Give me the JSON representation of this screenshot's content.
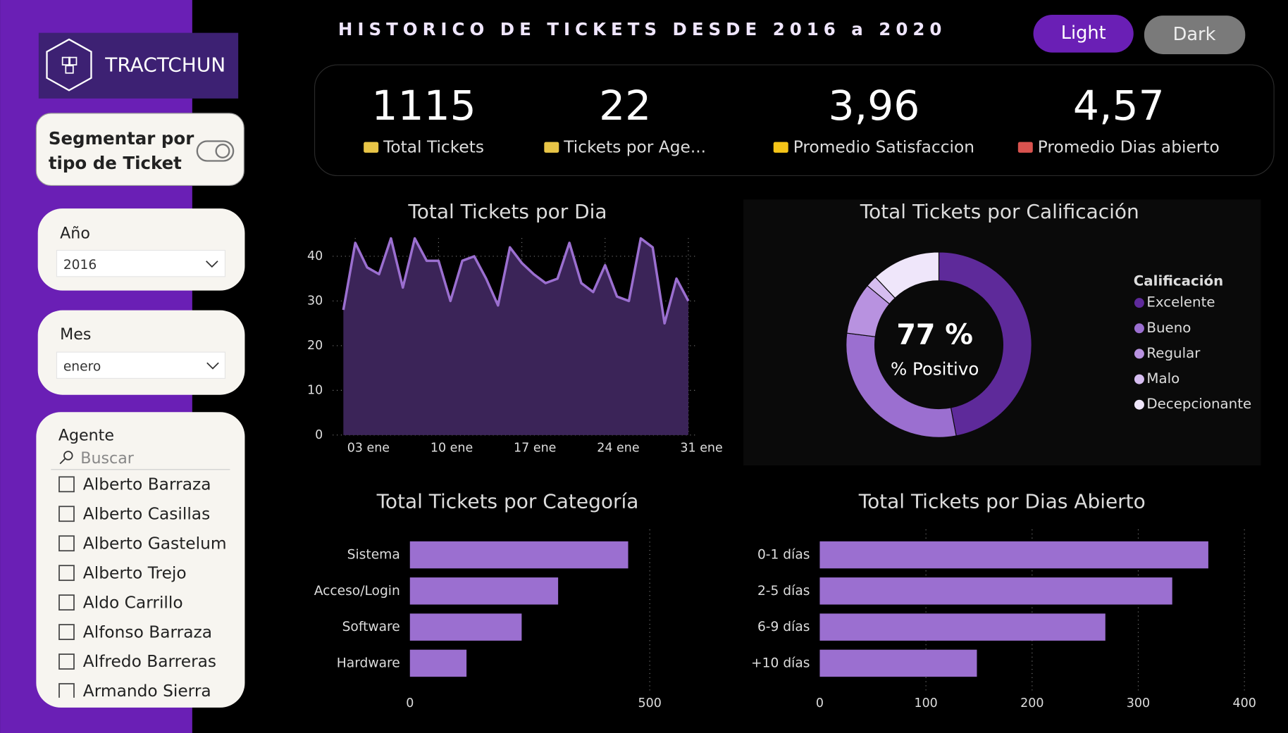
{
  "header": {
    "title": "HISTORICO DE TICKETS DESDE 2016 a 2020",
    "buttons": [
      "Light",
      "Dark"
    ]
  },
  "logo": "TRACTCHUN",
  "toggle": {
    "label_lines": [
      "Segmentar por",
      "tipo de Ticket"
    ]
  },
  "slicers": {
    "year": {
      "label": "Año",
      "value": "2016"
    },
    "month": {
      "label": "Mes",
      "value": "enero"
    },
    "agent": {
      "label": "Agente",
      "search": "Buscar",
      "items": [
        "Alberto Barraza",
        "Alberto Casillas",
        "Alberto Gastelum",
        "Alberto Trejo",
        "Aldo Carrillo",
        "Alfonso Barraza",
        "Alfredo Barreras",
        "Armando Sierra"
      ]
    }
  },
  "kpis": [
    {
      "value": "1115",
      "label": "Total Tickets"
    },
    {
      "value": "22",
      "label": "Tickets por Age..."
    },
    {
      "value": "3,96",
      "label": "Promedio Satisfaccion"
    },
    {
      "value": "4,57",
      "label": "Promedio Dias abierto"
    }
  ],
  "chart_data": [
    {
      "type": "area",
      "title": "Total Tickets por Dia",
      "x": [
        2,
        3,
        4,
        5,
        6,
        7,
        8,
        9,
        10,
        11,
        12,
        13,
        14,
        15,
        16,
        17,
        18,
        19,
        20,
        21,
        22,
        23,
        24,
        25,
        26,
        27,
        28,
        29,
        30,
        31
      ],
      "values": [
        28,
        43,
        37.5,
        36,
        44,
        33,
        44,
        39,
        39,
        30,
        39,
        40,
        35,
        29,
        42,
        38.5,
        36,
        34,
        35,
        43,
        34,
        32,
        38,
        31,
        30,
        44,
        42,
        25,
        35,
        30
      ],
      "color": "#9b6fd0",
      "xlim": [
        2,
        31
      ],
      "xticks": [
        {
          "value": 3,
          "label": "03 ene"
        },
        {
          "value": 10,
          "label": "10 ene"
        },
        {
          "value": 17,
          "label": "17 ene"
        },
        {
          "value": 24,
          "label": "24 ene"
        },
        {
          "value": 31,
          "label": "31 ene"
        }
      ],
      "ylim": [
        0,
        45
      ],
      "yticks": [
        0,
        10,
        20,
        30,
        40
      ],
      "grid": true
    },
    {
      "type": "donut",
      "title": "Total Tickets por Calificación",
      "legend_title": "Calificación",
      "categories": [
        "Excelente",
        "Bueno",
        "Regular",
        "Malo",
        "Decepcionante"
      ],
      "values": [
        47,
        30,
        9,
        2,
        12
      ],
      "colors": [
        "#5e2a9a",
        "#9b6fd0",
        "#b892e0",
        "#d6bdf0",
        "#efe6fa"
      ],
      "center_value": "77 %",
      "center_label": "% Positivo",
      "legend": "right"
    },
    {
      "type": "hbar",
      "title": "Total Tickets por Categoría",
      "categories": [
        "Sistema",
        "Acceso/Login",
        "Software",
        "Hardware"
      ],
      "values": [
        455,
        309,
        233,
        118
      ],
      "color": "#9b6fd0",
      "xlim": [
        0,
        500
      ],
      "xticks": [
        0,
        500
      ],
      "grid": true
    },
    {
      "type": "hbar",
      "title": "Total Tickets por Dias Abierto",
      "categories": [
        "0-1 días",
        "2-5 días",
        "6-9 días",
        "+10 días"
      ],
      "values": [
        366,
        332,
        269,
        148
      ],
      "color": "#9b6fd0",
      "xlim": [
        0,
        400
      ],
      "xticks": [
        0,
        100,
        200,
        300,
        400
      ],
      "grid": true
    }
  ]
}
